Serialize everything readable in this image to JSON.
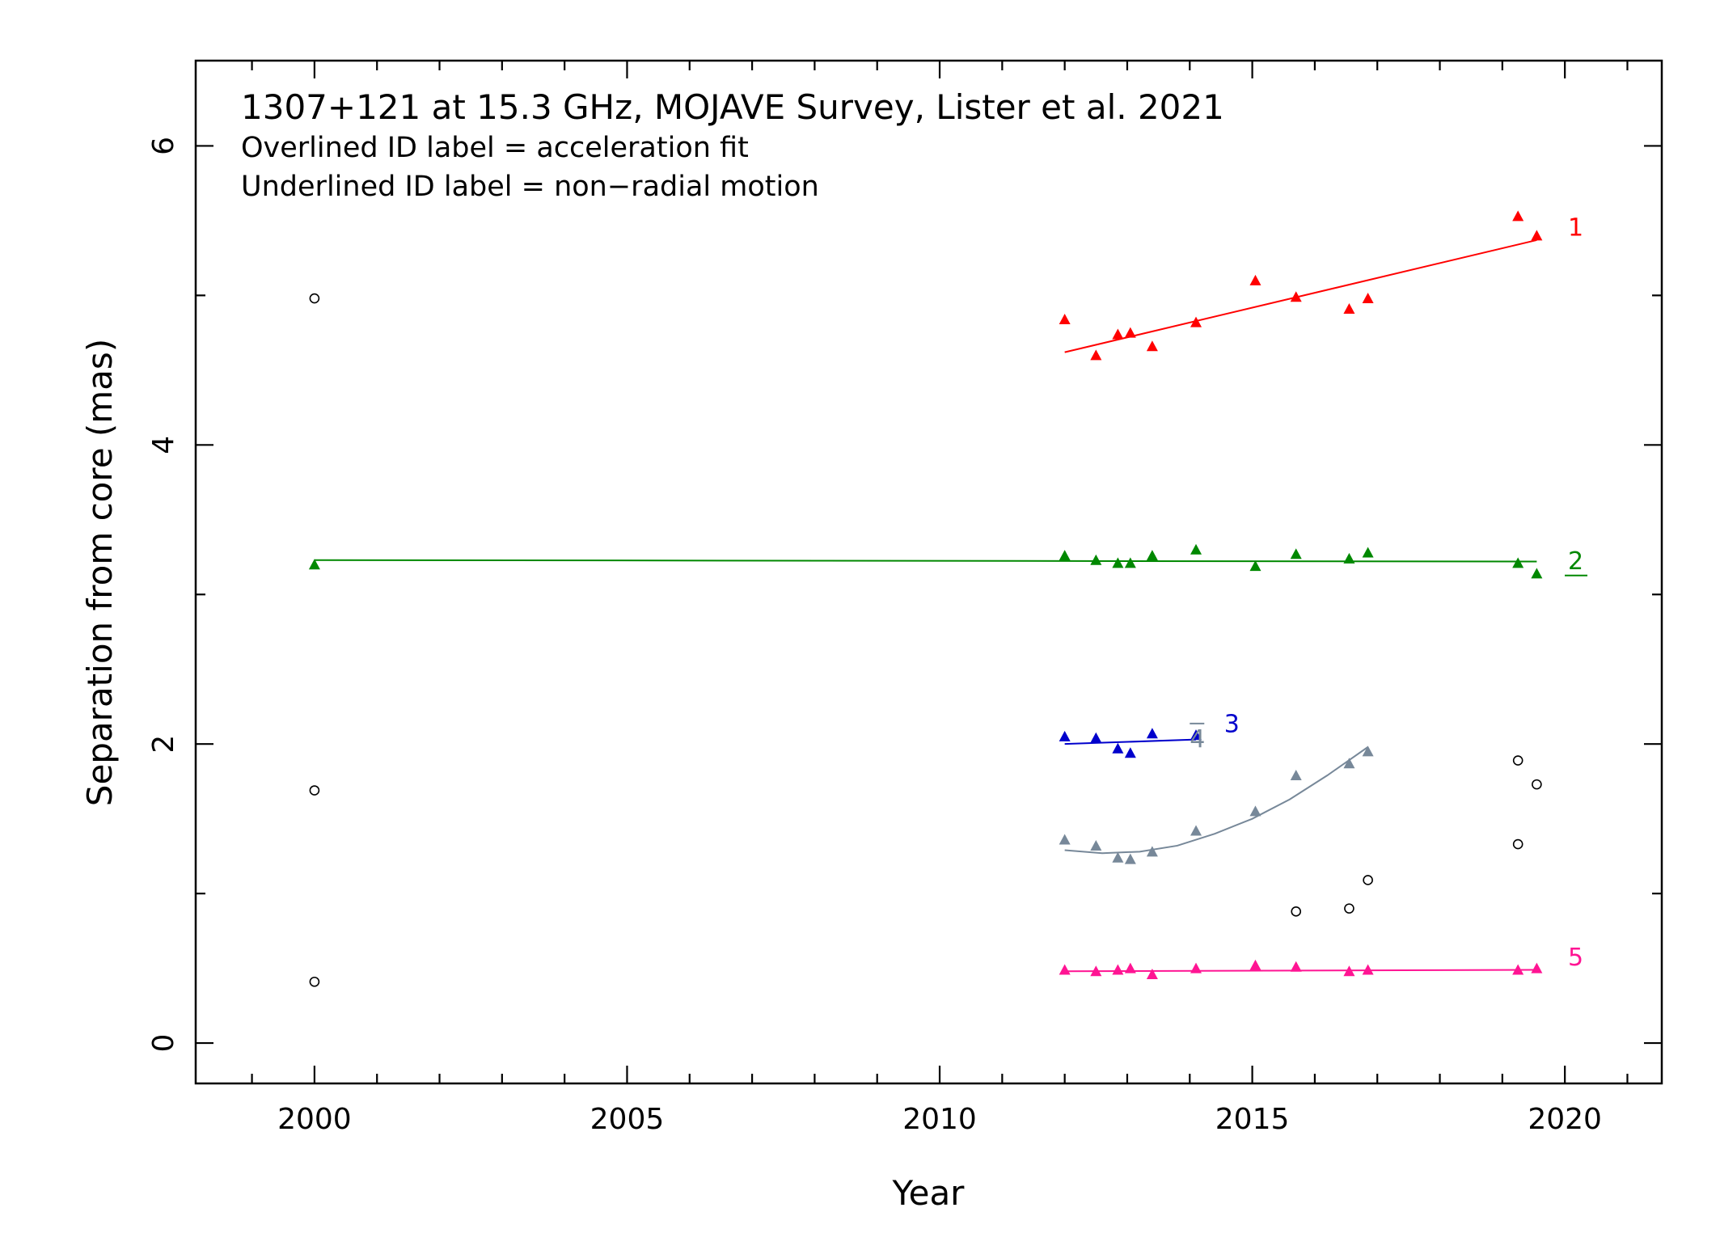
{
  "chart_data": {
    "type": "scatter",
    "title": "1307+121 at 15.3 GHz, MOJAVE Survey, Lister et al. 2021",
    "notes": [
      "Overlined ID label = acceleration fit",
      "Underlined ID label = non−radial motion"
    ],
    "xlabel": "Year",
    "ylabel": "Separation from core (mas)",
    "xlim": [
      1998.1,
      2021.55
    ],
    "ylim": [
      -0.27,
      6.57
    ],
    "xticks": [
      2000,
      2005,
      2010,
      2015,
      2020
    ],
    "yticks": [
      0,
      2,
      4,
      6
    ],
    "xminor_step": 1,
    "yminor_step": 1,
    "grid": false,
    "series": [
      {
        "name": "1",
        "color": "#ff0000",
        "label_style": "plain",
        "points": [
          [
            2012.0,
            4.84
          ],
          [
            2012.5,
            4.6
          ],
          [
            2012.85,
            4.74
          ],
          [
            2013.05,
            4.75
          ],
          [
            2013.4,
            4.66
          ],
          [
            2014.1,
            4.82
          ],
          [
            2015.05,
            5.1
          ],
          [
            2015.7,
            4.99
          ],
          [
            2016.55,
            4.91
          ],
          [
            2016.85,
            4.98
          ],
          [
            2019.25,
            5.53
          ],
          [
            2019.55,
            5.4
          ]
        ],
        "fit": {
          "kind": "linear",
          "x_range": [
            2012.0,
            2019.55
          ],
          "points": [
            [
              2012.0,
              4.62
            ],
            [
              2019.55,
              5.37
            ]
          ]
        },
        "label_pos": [
          2020.05,
          5.4
        ]
      },
      {
        "name": "2",
        "color": "#008800",
        "label_style": "underline",
        "points": [
          [
            2000.0,
            3.2
          ],
          [
            2012.0,
            3.26
          ],
          [
            2012.5,
            3.23
          ],
          [
            2012.85,
            3.21
          ],
          [
            2013.05,
            3.21
          ],
          [
            2013.4,
            3.26
          ],
          [
            2014.1,
            3.3
          ],
          [
            2015.05,
            3.19
          ],
          [
            2015.7,
            3.27
          ],
          [
            2016.55,
            3.24
          ],
          [
            2016.85,
            3.28
          ],
          [
            2019.25,
            3.21
          ],
          [
            2019.55,
            3.14
          ]
        ],
        "fit": {
          "kind": "linear",
          "x_range": [
            2000.0,
            2019.55
          ],
          "points": [
            [
              2000.0,
              3.23
            ],
            [
              2019.55,
              3.22
            ]
          ]
        },
        "label_pos": [
          2020.05,
          3.17
        ]
      },
      {
        "name": "3",
        "color": "#0000cc",
        "label_style": "plain",
        "points": [
          [
            2012.0,
            2.05
          ],
          [
            2012.5,
            2.04
          ],
          [
            2012.85,
            1.97
          ],
          [
            2013.05,
            1.94
          ],
          [
            2013.4,
            2.07
          ],
          [
            2014.1,
            2.06
          ]
        ],
        "fit": {
          "kind": "linear",
          "x_range": [
            2012.0,
            2014.1
          ],
          "points": [
            [
              2012.0,
              2.0
            ],
            [
              2014.1,
              2.03
            ]
          ]
        },
        "label_pos": [
          2014.55,
          2.08
        ]
      },
      {
        "name": "4",
        "color": "#778899",
        "label_style": "overline",
        "points": [
          [
            2012.0,
            1.36
          ],
          [
            2012.5,
            1.32
          ],
          [
            2012.85,
            1.24
          ],
          [
            2013.05,
            1.23
          ],
          [
            2013.4,
            1.28
          ],
          [
            2014.1,
            1.42
          ],
          [
            2015.05,
            1.55
          ],
          [
            2015.7,
            1.79
          ],
          [
            2016.55,
            1.87
          ],
          [
            2016.85,
            1.95
          ]
        ],
        "fit": {
          "kind": "quadratic",
          "x_range": [
            2012.0,
            2016.85
          ],
          "points": [
            [
              2012.0,
              1.29
            ],
            [
              2012.6,
              1.27
            ],
            [
              2013.2,
              1.28
            ],
            [
              2013.8,
              1.32
            ],
            [
              2014.4,
              1.4
            ],
            [
              2015.0,
              1.5
            ],
            [
              2015.6,
              1.63
            ],
            [
              2016.2,
              1.79
            ],
            [
              2016.85,
              1.98
            ]
          ]
        },
        "label_pos": [
          2014.0,
          1.98
        ]
      },
      {
        "name": "5",
        "color": "#ff1493",
        "label_style": "plain",
        "points": [
          [
            2012.0,
            0.49
          ],
          [
            2012.5,
            0.48
          ],
          [
            2012.85,
            0.49
          ],
          [
            2013.05,
            0.5
          ],
          [
            2013.4,
            0.46
          ],
          [
            2014.1,
            0.5
          ],
          [
            2015.05,
            0.52
          ],
          [
            2015.7,
            0.51
          ],
          [
            2016.55,
            0.48
          ],
          [
            2016.85,
            0.49
          ],
          [
            2019.25,
            0.49
          ],
          [
            2019.55,
            0.5
          ]
        ],
        "fit": {
          "kind": "linear",
          "x_range": [
            2012.0,
            2019.55
          ],
          "points": [
            [
              2012.0,
              0.48
            ],
            [
              2019.55,
              0.49
            ]
          ]
        },
        "label_pos": [
          2020.05,
          0.52
        ]
      }
    ],
    "unassociated": {
      "marker": "open-circle",
      "color": "#000000",
      "points": [
        [
          2000.0,
          4.98
        ],
        [
          2000.0,
          1.69
        ],
        [
          2000.0,
          0.41
        ],
        [
          2015.7,
          0.88
        ],
        [
          2016.55,
          0.9
        ],
        [
          2016.85,
          1.09
        ],
        [
          2019.25,
          1.89
        ],
        [
          2019.25,
          1.33
        ],
        [
          2019.55,
          1.73
        ]
      ]
    }
  }
}
